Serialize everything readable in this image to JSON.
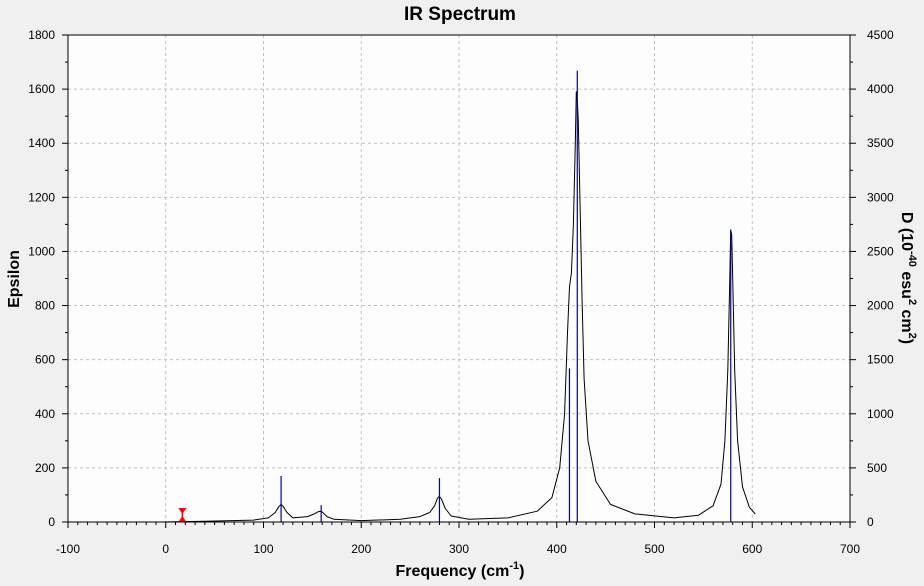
{
  "chart_data": {
    "type": "line",
    "title": "IR Spectrum",
    "xlabel": {
      "text": "Frequency (cm",
      "sup": "-1",
      "close": ")"
    },
    "ylabel": "Epsilon",
    "y2label": {
      "p1": "D (10",
      "sup1": "-40",
      "p2": " esu",
      "sup2": "2",
      "p3": " cm",
      "sup3": "2",
      "p4": ")"
    },
    "xlim": [
      -100,
      700
    ],
    "ylim": [
      0,
      1800
    ],
    "y2lim": [
      0,
      4500
    ],
    "x_ticks": [
      "-100",
      "0",
      "100",
      "200",
      "300",
      "400",
      "500",
      "600",
      "700"
    ],
    "y_ticks": [
      "0",
      "200",
      "400",
      "600",
      "800",
      "1000",
      "1200",
      "1400",
      "1600",
      "1800"
    ],
    "y2_ticks": [
      "0",
      "500",
      "1000",
      "1500",
      "2000",
      "2500",
      "3000",
      "3500",
      "4000",
      "4500"
    ],
    "grid": true,
    "series": [
      {
        "kind": "spectrum",
        "x": [
          -5,
          40,
          90,
          105,
          112,
          116,
          118,
          120,
          124,
          130,
          145,
          152,
          156,
          159,
          161,
          165,
          172,
          200,
          240,
          260,
          270,
          275,
          278,
          280,
          282,
          286,
          292,
          310,
          350,
          380,
          395,
          403,
          408,
          411,
          413,
          415,
          417,
          419,
          420,
          421,
          422,
          424,
          426,
          428,
          432,
          440,
          455,
          480,
          520,
          545,
          560,
          568,
          572,
          575,
          577,
          578,
          579,
          580,
          582,
          585,
          590,
          597,
          603
        ],
        "y": [
          0,
          3,
          7,
          15,
          35,
          58,
          65,
          58,
          35,
          15,
          20,
          30,
          38,
          40,
          34,
          20,
          10,
          5,
          10,
          20,
          35,
          60,
          88,
          95,
          85,
          50,
          22,
          10,
          15,
          40,
          90,
          200,
          400,
          700,
          870,
          920,
          1100,
          1400,
          1590,
          1560,
          1480,
          1150,
          800,
          530,
          300,
          150,
          65,
          30,
          15,
          25,
          60,
          140,
          300,
          560,
          900,
          1080,
          1060,
          900,
          560,
          300,
          130,
          55,
          30
        ]
      },
      {
        "kind": "sticks",
        "name_axis": "right",
        "x": [
          118,
          159,
          280,
          413,
          421,
          578
        ],
        "y": [
          425,
          155,
          405,
          1420,
          4170,
          2690
        ]
      }
    ],
    "marker": {
      "x": 17,
      "color": "#ff0000"
    },
    "colors": {
      "spectrum": "#000000",
      "sticks": "#0000a0",
      "grid": "#c0c0c0",
      "plot_bg": "#fdfdfd",
      "frame": "#000000"
    }
  }
}
